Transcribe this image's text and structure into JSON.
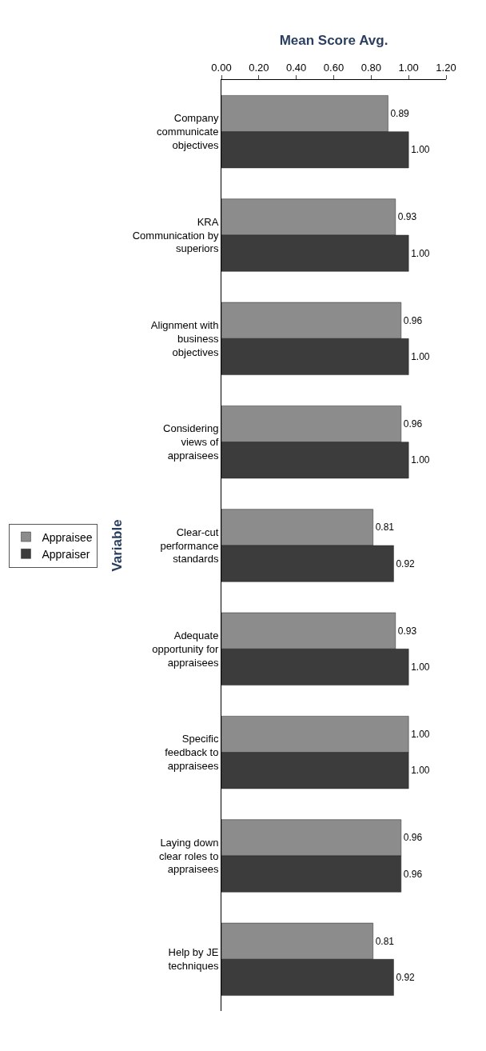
{
  "chart_data": {
    "type": "bar",
    "orientation": "horizontal",
    "xlabel": "Mean Score Avg.",
    "ylabel": "Variable",
    "categories": [
      "Company communicate objectives",
      "KRA Communication by superiors",
      "Alignment with business objectives",
      "Considering views of appraisees",
      "Clear-cut performance standards",
      "Adequate opportunity for appraisees",
      "Specific feedback to appraisees",
      "Laying down clear roles to appraisees",
      "Help by JE techniques"
    ],
    "series": [
      {
        "name": "Appraisee",
        "color": "#8c8c8c",
        "values": [
          0.89,
          0.93,
          0.96,
          0.96,
          0.81,
          0.93,
          1.0,
          0.96,
          0.81
        ],
        "value_labels": [
          "0.89",
          "0.93",
          "0.96",
          "0.96",
          "0.81",
          "0.93",
          "1.00",
          "0.96",
          "0.81"
        ]
      },
      {
        "name": "Appraiser",
        "color": "#3c3c3c",
        "values": [
          1.0,
          1.0,
          1.0,
          1.0,
          0.92,
          1.0,
          1.0,
          0.96,
          0.92
        ],
        "value_labels": [
          "1.00",
          "1.00",
          "1.00",
          "1.00",
          "0.92",
          "1.00",
          "1.00",
          "0.96",
          "0.92"
        ]
      }
    ],
    "xlim": [
      0,
      1.2
    ],
    "xticks": [
      "0.00",
      "0.20",
      "0.40",
      "0.60",
      "0.80",
      "1.00",
      "1.20"
    ],
    "legend": "left"
  }
}
